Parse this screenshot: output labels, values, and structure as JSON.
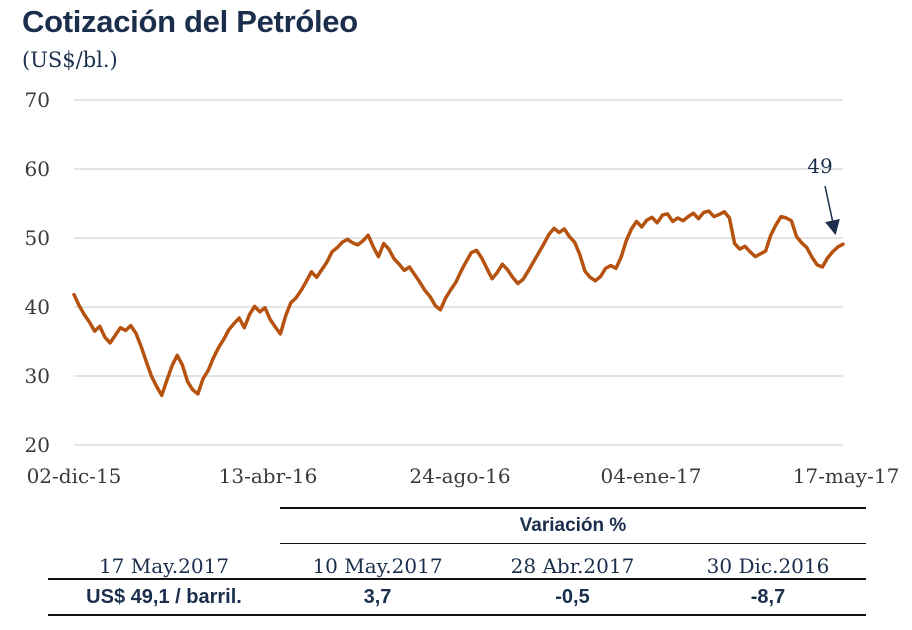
{
  "title": "Cotización del Petróleo",
  "unit": "(US$/bl.)",
  "colors": {
    "line": "#b5520f",
    "title": "#1b2f4d",
    "grid": "#c8c8c8"
  },
  "chart_data": {
    "type": "line",
    "title": "Cotización del Petróleo",
    "ylabel": "(US$/bl.)",
    "ylim": [
      20,
      70
    ],
    "yticks": [
      "70",
      "60",
      "50",
      "40",
      "30",
      "20"
    ],
    "xticks": [
      "02-dic-15",
      "13-abr-16",
      "24-ago-16",
      "04-ene-17",
      "17-may-17"
    ],
    "grid": "horizontal",
    "annotation": {
      "text": "49",
      "value": 49.1
    },
    "series": [
      {
        "values": [
          41.8,
          40.2,
          38.9,
          37.8,
          36.5,
          37.2,
          35.6,
          34.8,
          35.9,
          37.0,
          36.6,
          37.3,
          36.2,
          34.3,
          32.1,
          30.0,
          28.5,
          27.2,
          29.4,
          31.5,
          33.0,
          31.6,
          29.2,
          28.0,
          27.4,
          29.6,
          30.8,
          32.6,
          34.1,
          35.3,
          36.7,
          37.6,
          38.4,
          37.0,
          38.9,
          40.1,
          39.3,
          39.9,
          38.2,
          37.1,
          36.1,
          38.7,
          40.6,
          41.3,
          42.4,
          43.7,
          45.1,
          44.3,
          45.4,
          46.5,
          48.0,
          48.6,
          49.4,
          49.8,
          49.3,
          49.0,
          49.6,
          50.4,
          48.7,
          47.3,
          49.2,
          48.4,
          47.0,
          46.2,
          45.3,
          45.8,
          44.7,
          43.6,
          42.4,
          41.5,
          40.2,
          39.6,
          41.3,
          42.5,
          43.6,
          45.2,
          46.6,
          47.9,
          48.2,
          47.1,
          45.6,
          44.1,
          45.0,
          46.2,
          45.4,
          44.3,
          43.4,
          44.0,
          45.2,
          46.5,
          47.8,
          49.1,
          50.5,
          51.4,
          50.8,
          51.3,
          50.2,
          49.4,
          47.6,
          45.2,
          44.3,
          43.8,
          44.4,
          45.6,
          46.0,
          45.6,
          47.2,
          49.6,
          51.3,
          52.4,
          51.6,
          52.6,
          53.0,
          52.2,
          53.3,
          53.5,
          52.4,
          52.9,
          52.5,
          53.1,
          53.6,
          52.8,
          53.7,
          53.9,
          53.1,
          53.4,
          53.8,
          52.9,
          49.2,
          48.4,
          48.8,
          48.0,
          47.3,
          47.7,
          48.1,
          50.4,
          51.9,
          53.1,
          52.9,
          52.5,
          50.2,
          49.3,
          48.6,
          47.2,
          46.1,
          45.8,
          47.1,
          48.0,
          48.7,
          49.1
        ]
      }
    ]
  },
  "table": {
    "variation_label": "Variación %",
    "headers": [
      "17 May.2017",
      "10 May.2017",
      "28 Abr.2017",
      "30 Dic.2016"
    ],
    "values": [
      "US$ 49,1 / barril.",
      "3,7",
      "-0,5",
      "-8,7"
    ]
  }
}
